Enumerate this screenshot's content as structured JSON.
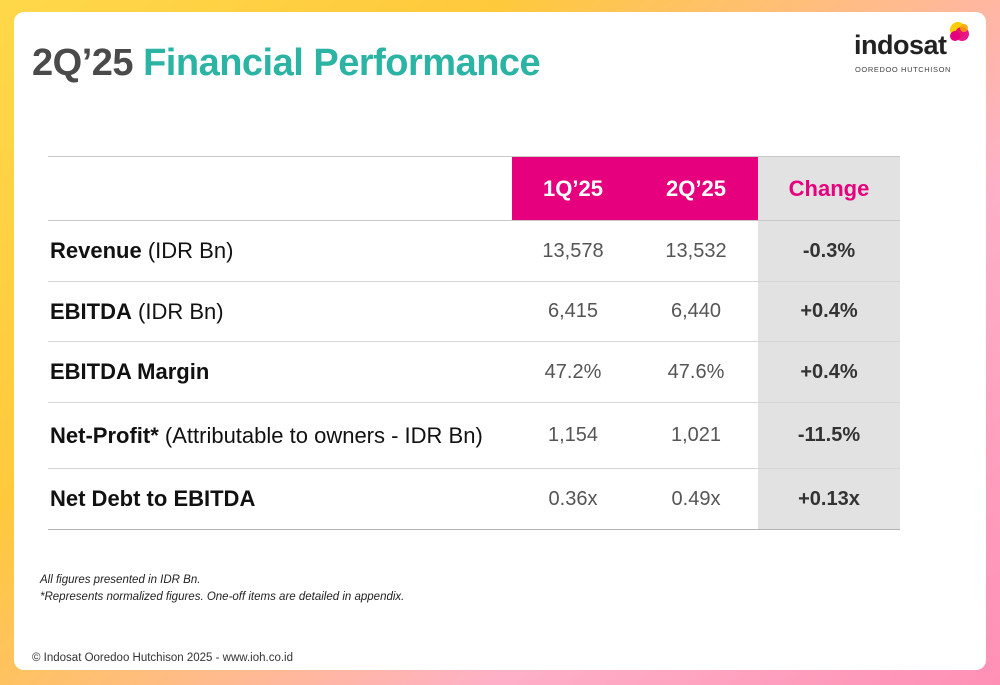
{
  "title": {
    "period": "2Q’25",
    "text": "Financial Performance"
  },
  "logo": {
    "name": "indosat",
    "subtitle": "OOREDOO HUTCHISON"
  },
  "colors": {
    "magenta": "#e6007e",
    "teal": "#2bb3a3",
    "grey_cell": "#e2e2e2"
  },
  "table": {
    "headers": {
      "metric": "",
      "q1": "1Q’25",
      "q2": "2Q’25",
      "change": "Change"
    },
    "rows": [
      {
        "label_bold": "Revenue",
        "label_rest": " (IDR Bn)",
        "q1": "13,578",
        "q2": "13,532",
        "change": "-0.3%"
      },
      {
        "label_bold": "EBITDA",
        "label_rest": " (IDR Bn)",
        "q1": "6,415",
        "q2": "6,440",
        "change": "+0.4%"
      },
      {
        "label_bold": "EBITDA Margin",
        "label_rest": "",
        "q1": "47.2%",
        "q2": "47.6%",
        "change": "+0.4%"
      },
      {
        "label_bold": "Net-Profit*",
        "label_rest": " (Attributable to owners - IDR Bn)",
        "q1": "1,154",
        "q2": "1,021",
        "change": "-11.5%"
      },
      {
        "label_bold": "Net Debt to EBITDA",
        "label_rest": "",
        "q1": "0.36x",
        "q2": "0.49x",
        "change": "+0.13x"
      }
    ]
  },
  "notes": [
    "All figures presented in IDR Bn.",
    "*Represents normalized figures. One-off items are detailed in appendix."
  ],
  "footer": "© Indosat Ooredoo Hutchison 2025 - www.ioh.co.id"
}
